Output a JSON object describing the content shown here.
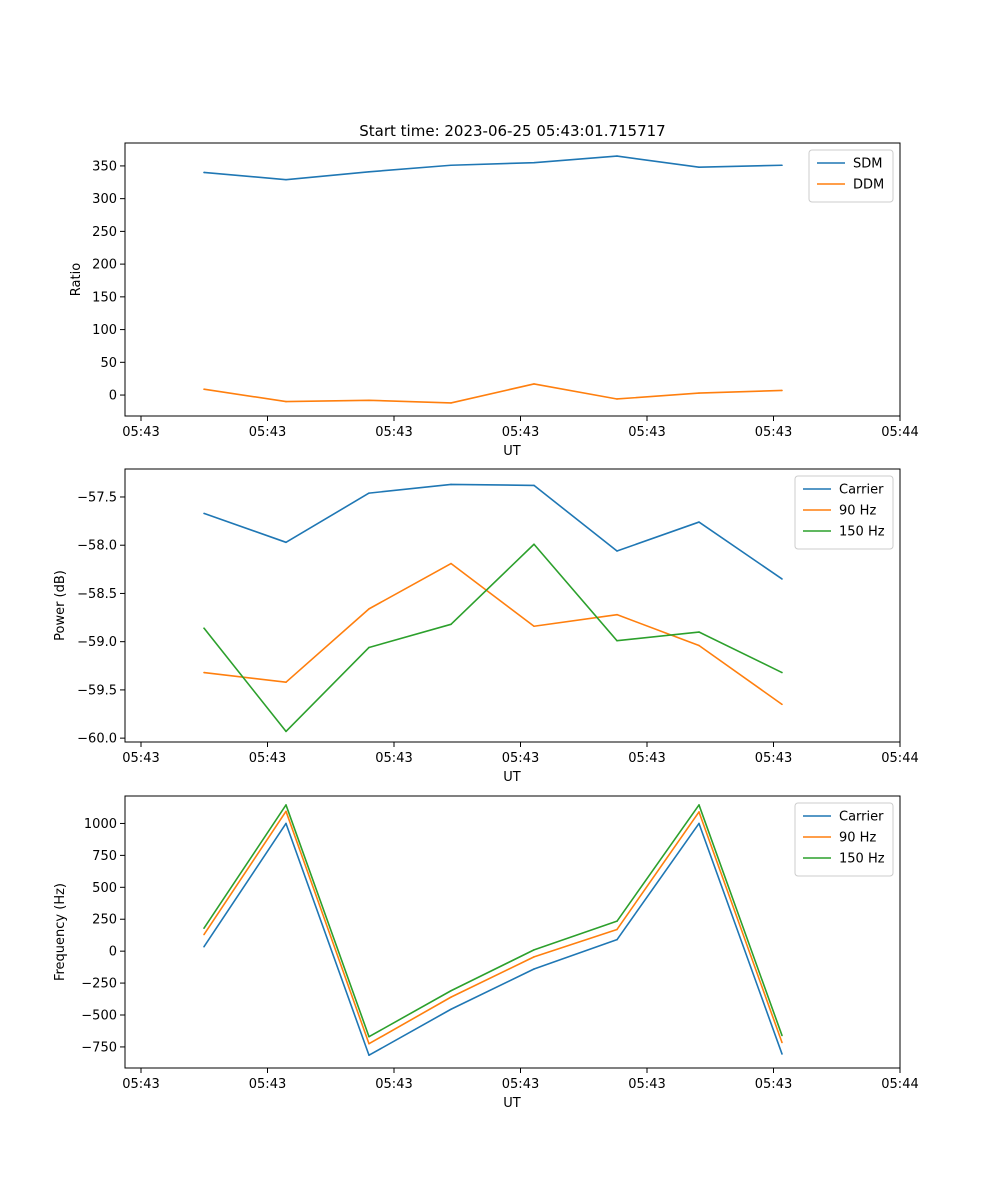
{
  "title": "Start time: 2023-06-25 05:43:01.715717",
  "x_tick_labels": [
    "05:43",
    "05:43",
    "05:43",
    "05:43",
    "05:43",
    "05:43",
    "05:43"
  ],
  "chart_data": [
    {
      "type": "line",
      "title": "Start time: 2023-06-25 05:43:01.715717",
      "xlabel": "UT",
      "ylabel": "Ratio",
      "x_tick_labels": [
        "05:43",
        "05:43",
        "05:43",
        "05:43",
        "05:43",
        "05:43",
        "05:44"
      ],
      "y_ticks": [
        0,
        50,
        100,
        150,
        200,
        250,
        300,
        350
      ],
      "y_tick_labels": [
        "0",
        "50",
        "100",
        "150",
        "200",
        "250",
        "300",
        "350"
      ],
      "ylim": [
        -32,
        385
      ],
      "legend_position": "top-right",
      "grid": false,
      "series": [
        {
          "name": "SDM",
          "color": "#1f77b4",
          "values": [
            340,
            329,
            341,
            351,
            355,
            365,
            348,
            351
          ]
        },
        {
          "name": "DDM",
          "color": "#ff7f0e",
          "values": [
            9,
            -10,
            -8,
            -12,
            17,
            -6,
            3,
            7
          ]
        }
      ]
    },
    {
      "type": "line",
      "title": "",
      "xlabel": "UT",
      "ylabel": "Power (dB)",
      "x_tick_labels": [
        "05:43",
        "05:43",
        "05:43",
        "05:43",
        "05:43",
        "05:43",
        "05:44"
      ],
      "y_ticks": [
        -60.0,
        -59.5,
        -59.0,
        -58.5,
        -58.0,
        -57.5
      ],
      "y_tick_labels": [
        "−60.0",
        "−59.5",
        "−59.0",
        "−58.5",
        "−58.0",
        "−57.5"
      ],
      "ylim": [
        -60.04,
        -57.21
      ],
      "legend_position": "top-right",
      "grid": false,
      "series": [
        {
          "name": "Carrier",
          "color": "#1f77b4",
          "values": [
            -57.67,
            -57.97,
            -57.46,
            -57.37,
            -57.38,
            -58.06,
            -57.76,
            -58.35
          ]
        },
        {
          "name": "90 Hz",
          "color": "#ff7f0e",
          "values": [
            -59.32,
            -59.42,
            -58.66,
            -58.19,
            -58.84,
            -58.72,
            -59.04,
            -59.65
          ]
        },
        {
          "name": "150 Hz",
          "color": "#2ca02c",
          "values": [
            -58.86,
            -59.93,
            -59.06,
            -58.82,
            -57.99,
            -58.99,
            -58.9,
            -59.32
          ]
        }
      ]
    },
    {
      "type": "line",
      "title": "",
      "xlabel": "UT",
      "ylabel": "Frequency (Hz)",
      "x_tick_labels": [
        "05:43",
        "05:43",
        "05:43",
        "05:43",
        "05:43",
        "05:43",
        "05:44"
      ],
      "y_ticks": [
        -750,
        -500,
        -250,
        0,
        250,
        500,
        750,
        1000
      ],
      "y_tick_labels": [
        "−750",
        "−500",
        "−250",
        "0",
        "250",
        "500",
        "750",
        "1000"
      ],
      "ylim": [
        -915,
        1215
      ],
      "legend_position": "top-right",
      "grid": false,
      "series": [
        {
          "name": "Carrier",
          "color": "#1f77b4",
          "values": [
            35,
            1000,
            -815,
            -455,
            -140,
            90,
            1000,
            -805
          ]
        },
        {
          "name": "90 Hz",
          "color": "#ff7f0e",
          "values": [
            130,
            1095,
            -725,
            -360,
            -45,
            170,
            1090,
            -715
          ]
        },
        {
          "name": "150 Hz",
          "color": "#2ca02c",
          "values": [
            180,
            1145,
            -670,
            -310,
            10,
            235,
            1145,
            -660
          ]
        }
      ]
    }
  ]
}
